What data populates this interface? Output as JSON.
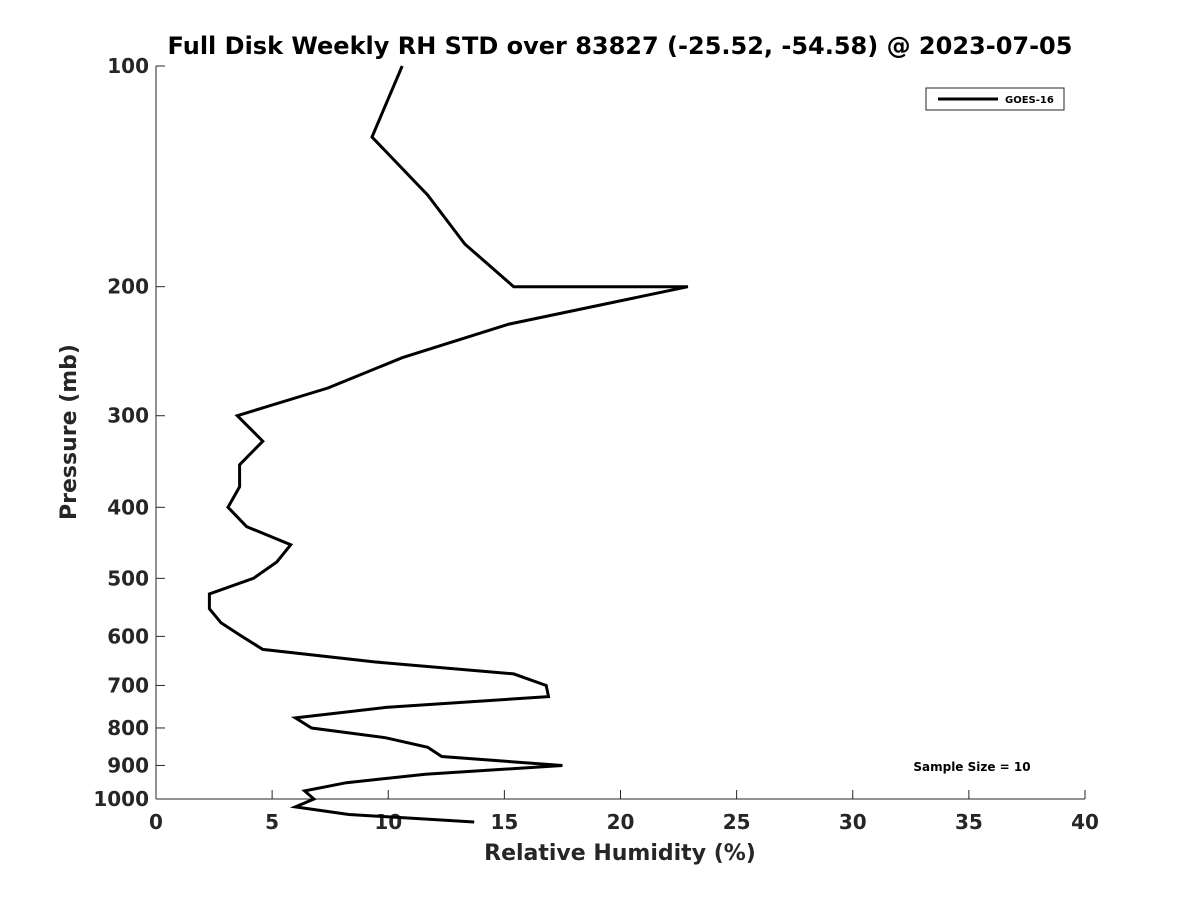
{
  "chart_data": {
    "type": "line",
    "title": "Full Disk Weekly RH STD over 83827 (-25.52, -54.58) @ 2023-07-05",
    "xlabel": "Relative Humidity (%)",
    "ylabel": "Pressure (mb)",
    "xlim": [
      0,
      40
    ],
    "ylim": [
      100,
      1000
    ],
    "yscale": "log",
    "yreversed": true,
    "x_ticks": [
      0,
      5,
      10,
      15,
      20,
      25,
      30,
      35,
      40
    ],
    "x_tick_labels": [
      "0",
      "5",
      "10",
      "15",
      "20",
      "25",
      "30",
      "35",
      "40"
    ],
    "y_ticks": [
      100,
      200,
      300,
      400,
      500,
      600,
      700,
      800,
      900,
      1000
    ],
    "y_tick_labels": [
      "100",
      "200",
      "300",
      "400",
      "500",
      "600",
      "700",
      "800",
      "900",
      "1000"
    ],
    "grid": false,
    "legend_position": "top-right",
    "series": [
      {
        "name": "GOES-16",
        "color": "#000000",
        "points": [
          [
            10.6,
            100
          ],
          [
            9.3,
            125
          ],
          [
            11.7,
            150
          ],
          [
            13.3,
            175
          ],
          [
            15.4,
            200
          ],
          [
            22.9,
            200
          ],
          [
            15.2,
            225
          ],
          [
            10.6,
            250
          ],
          [
            7.4,
            275
          ],
          [
            3.5,
            300
          ],
          [
            4.6,
            325
          ],
          [
            3.6,
            350
          ],
          [
            3.6,
            375
          ],
          [
            3.1,
            400
          ],
          [
            3.9,
            425
          ],
          [
            5.8,
            450
          ],
          [
            5.2,
            475
          ],
          [
            4.2,
            500
          ],
          [
            2.3,
            525
          ],
          [
            2.3,
            550
          ],
          [
            2.8,
            575
          ],
          [
            3.7,
            600
          ],
          [
            4.6,
            625
          ],
          [
            9.4,
            650
          ],
          [
            15.4,
            675
          ],
          [
            16.8,
            700
          ],
          [
            16.9,
            725
          ],
          [
            9.9,
            750
          ],
          [
            6.0,
            775
          ],
          [
            6.7,
            800
          ],
          [
            9.9,
            825
          ],
          [
            11.7,
            850
          ],
          [
            12.3,
            875
          ],
          [
            17.5,
            900
          ],
          [
            11.6,
            925
          ],
          [
            8.2,
            950
          ],
          [
            6.4,
            975
          ],
          [
            6.8,
            1000
          ],
          [
            6.0,
            1025
          ],
          [
            8.3,
            1050
          ],
          [
            13.7,
            1075
          ]
        ]
      }
    ],
    "annotations": [
      "Sample Size = 10"
    ]
  }
}
